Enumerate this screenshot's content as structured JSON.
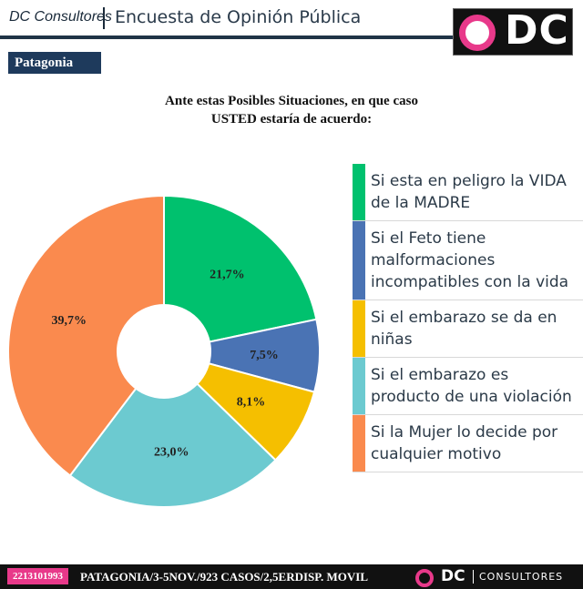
{
  "header": {
    "brand": "DC Consultores",
    "survey_title": "Encuesta de Opinión Pública",
    "logo_text": "DC"
  },
  "region_label": "Patagonia",
  "question": {
    "line1": "Ante estas Posibles Situaciones, en que caso",
    "line2": "USTED estaría de acuerdo:"
  },
  "chart_data": {
    "type": "pie",
    "donut": true,
    "start_angle_deg": 0,
    "direction": "clockwise",
    "legend_position": "right",
    "categories": [
      "Si esta en peligro la VIDA de la MADRE",
      "Si el Feto tiene malformaciones incompatibles con la vida",
      "Si el embarazo se da en niñas",
      "Si el embarazo es producto de una violación",
      "Si la Mujer lo decide por cualquier motivo"
    ],
    "values": [
      21.7,
      7.5,
      8.1,
      23.0,
      39.7
    ],
    "labels": [
      "21,7%",
      "7,5%",
      "8,1%",
      "23,0%",
      "39,7%"
    ],
    "colors": [
      "#00c16e",
      "#4a73b4",
      "#f5bf00",
      "#6ccad0",
      "#fa8a4e"
    ]
  },
  "footer": {
    "code": "2213101993",
    "info": "PATAGONIA/3-5NOV./923 CASOS/2,5ERDISP. MOVIL",
    "logo_dc": "DC",
    "logo_consultores": "CONSULTORES"
  }
}
